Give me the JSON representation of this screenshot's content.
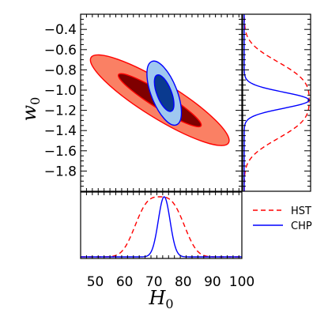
{
  "chart_data": {
    "type": "contour",
    "x": {
      "label": "H",
      "label_subscript": "0",
      "lim": [
        45,
        100
      ],
      "major_ticks": [
        50,
        60,
        70,
        80,
        90,
        100
      ],
      "tick_labels": [
        "50",
        "60",
        "70",
        "80",
        "90",
        "100"
      ]
    },
    "y": {
      "label": "w",
      "label_subscript": "0",
      "lim": [
        -2.0,
        -0.25
      ],
      "major_ticks": [
        -0.4,
        -0.6,
        -0.8,
        -1.0,
        -1.2,
        -1.4,
        -1.6,
        -1.8
      ],
      "tick_labels": [
        "−0.4",
        "−0.6",
        "−0.8",
        "−1.0",
        "−1.2",
        "−1.4",
        "−1.6",
        "−1.8"
      ]
    },
    "series": [
      {
        "name": "HST",
        "color": "#ff0000",
        "line_style": "dashed",
        "contour_fills": [
          "#fa8064",
          "#7f0000"
        ],
        "contour_edge": "#ff0000",
        "mean": {
          "H0": 72,
          "w0": -1.1
        },
        "contour_1sigma": {
          "semi_major": 0.3,
          "semi_minor": 0.05,
          "angle_deg": -42
        },
        "contour_2sigma": {
          "semi_major": 0.5,
          "semi_minor": 0.11,
          "angle_deg": -42
        },
        "marginal_H0": {
          "center": 72,
          "width": 10,
          "shape": "flat-top"
        },
        "marginal_w0": {
          "center": -1.1,
          "width": 0.45,
          "shape": "flat-top"
        }
      },
      {
        "name": "CHP",
        "color": "#0000ff",
        "line_style": "solid",
        "contour_fills": [
          "#9fc8f0",
          "#0a3a8f"
        ],
        "contour_edge": "#0000ff",
        "mean": {
          "H0": 73.5,
          "w0": -1.03
        },
        "contour_1sigma": {
          "semi_major": 0.12,
          "semi_minor": 0.045,
          "angle_deg": -75
        },
        "contour_2sigma": {
          "semi_major": 0.21,
          "semi_minor": 0.08,
          "angle_deg": -75
        },
        "marginal_H0": {
          "center": 73.5,
          "sigma": 2.0
        },
        "marginal_w0": {
          "center": -1.1,
          "sigma": 0.08
        }
      }
    ],
    "legend": {
      "placement": "bottom-right",
      "entries": [
        "HST",
        "CHP"
      ]
    },
    "grid": false
  }
}
